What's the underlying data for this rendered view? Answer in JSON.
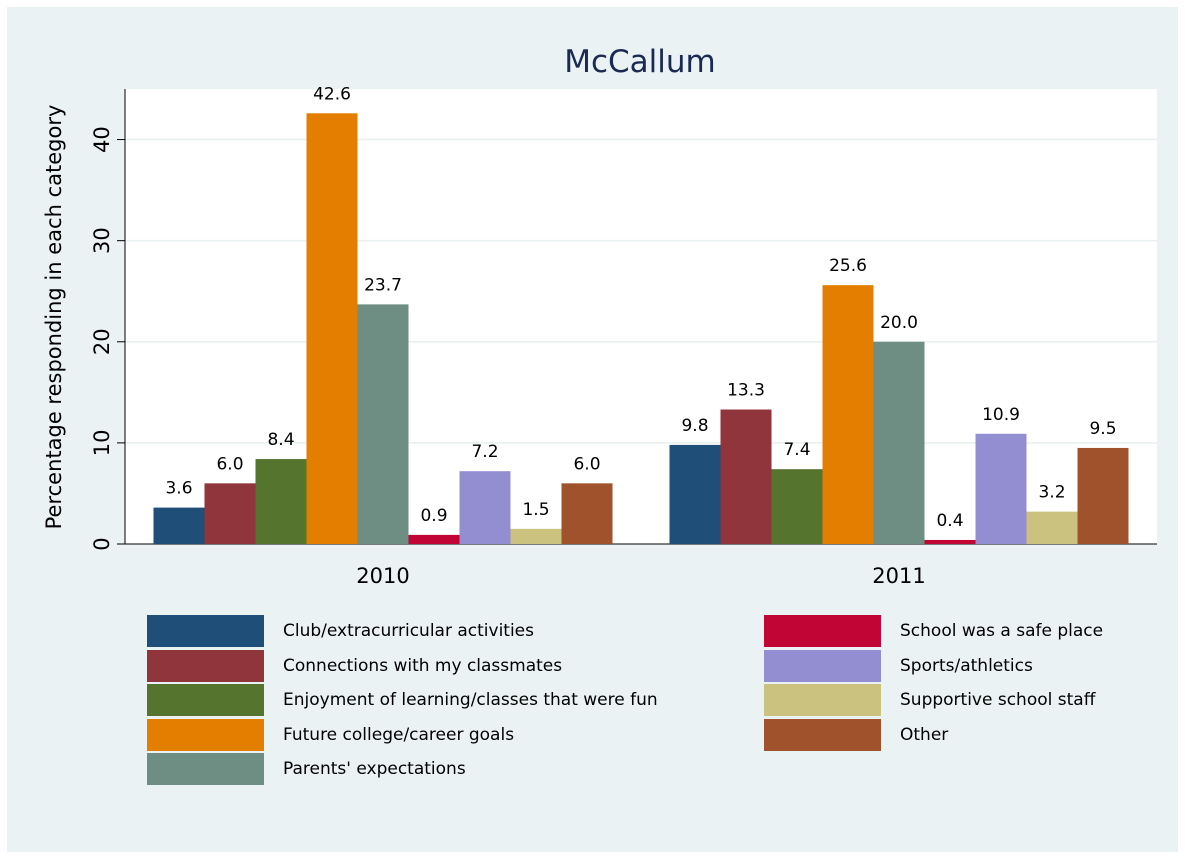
{
  "chart_data": {
    "type": "bar",
    "title": "McCallum",
    "xlabel": "",
    "ylabel": "Percentage responding in each category",
    "categories": [
      "2010",
      "2011"
    ],
    "ylim": [
      0,
      45
    ],
    "yticks": [
      "0",
      "10",
      "20",
      "30",
      "40"
    ],
    "grid": true,
    "legend_position": "bottom",
    "series": [
      {
        "name": "Club/extracurricular activities",
        "values": [
          3.6,
          9.8
        ],
        "labels": [
          "3.6",
          "9.8"
        ],
        "color": "#1f4e79"
      },
      {
        "name": "Connections with my classmates",
        "values": [
          6.0,
          13.3
        ],
        "labels": [
          "6.0",
          "13.3"
        ],
        "color": "#90353b"
      },
      {
        "name": "Enjoyment of learning/classes that were fun",
        "values": [
          8.4,
          7.4
        ],
        "labels": [
          "8.4",
          "7.4"
        ],
        "color": "#55752f"
      },
      {
        "name": "Future college/career goals",
        "values": [
          42.6,
          25.6
        ],
        "labels": [
          "42.6",
          "25.6"
        ],
        "color": "#e37e00"
      },
      {
        "name": "Parents' expectations",
        "values": [
          23.7,
          20.0
        ],
        "labels": [
          "23.7",
          "20.0"
        ],
        "color": "#6e8e84"
      },
      {
        "name": "School was a safe place",
        "values": [
          0.9,
          0.4
        ],
        "labels": [
          "0.9",
          "0.4"
        ],
        "color": "#c10534"
      },
      {
        "name": "Sports/athletics",
        "values": [
          7.2,
          10.9
        ],
        "labels": [
          "7.2",
          "10.9"
        ],
        "color": "#938dd2"
      },
      {
        "name": "Supportive school staff",
        "values": [
          1.5,
          3.2
        ],
        "labels": [
          "1.5",
          "3.2"
        ],
        "color": "#cac27e"
      },
      {
        "name": "Other",
        "values": [
          6.0,
          9.5
        ],
        "labels": [
          "6.0",
          "9.5"
        ],
        "color": "#a0522d"
      }
    ]
  }
}
